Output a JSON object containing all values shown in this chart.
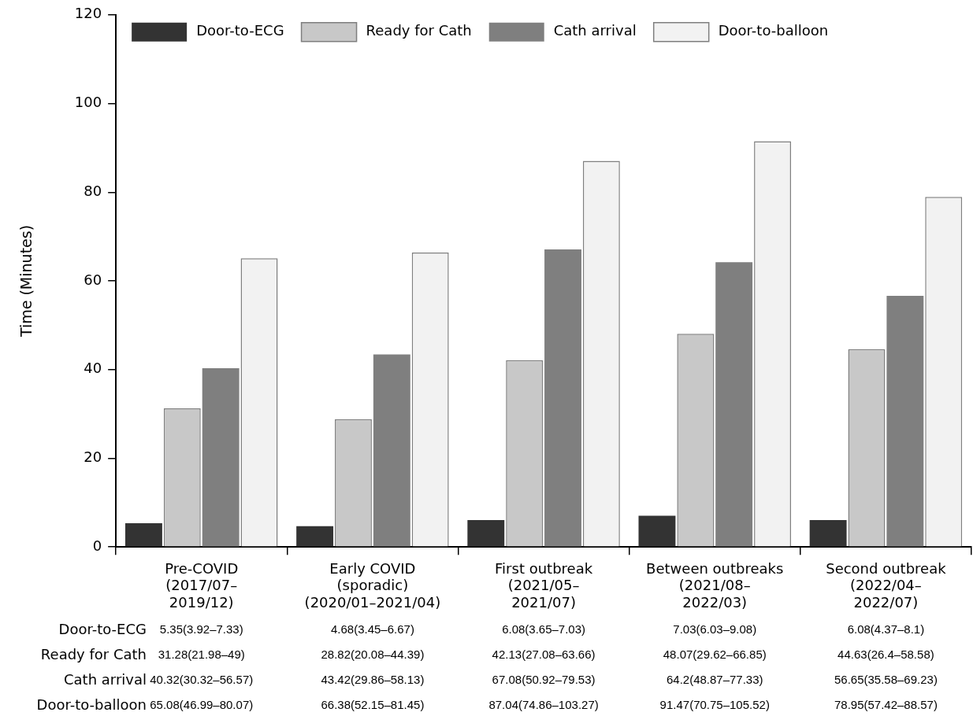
{
  "chart_data": {
    "type": "bar",
    "ylabel": "Time (Minutes)",
    "categories": [
      "Pre-COVID\n(2017/07–\n2019/12)",
      "Early COVID\n(sporadic)\n(2020/01–2021/04)",
      "First outbreak\n(2021/05–\n2021/07)",
      "Between outbreaks\n(2021/08–\n2022/03)",
      "Second outbreak\n(2022/04–\n2022/07)"
    ],
    "series": [
      {
        "name": "Door-to-ECG",
        "color": "#333333",
        "values": [
          5.35,
          4.68,
          6.08,
          7.03,
          6.08
        ],
        "value_labels": [
          "5.35(3.92–7.33)",
          "4.68(3.45–6.67)",
          "6.08(3.65–7.03)",
          "7.03(6.03–9.08)",
          "6.08(4.37–8.1)"
        ]
      },
      {
        "name": "Ready for Cath",
        "color": "#c8c8c8",
        "values": [
          31.28,
          28.82,
          42.13,
          48.07,
          44.63
        ],
        "value_labels": [
          "31.28(21.98–49)",
          "28.82(20.08–44.39)",
          "42.13(27.08–63.66)",
          "48.07(29.62–66.85)",
          "44.63(26.4–58.58)"
        ]
      },
      {
        "name": "Cath arrival",
        "color": "#7f7f7f",
        "values": [
          40.32,
          43.42,
          67.08,
          64.2,
          56.65
        ],
        "value_labels": [
          "40.32(30.32–56.57)",
          "43.42(29.86–58.13)",
          "67.08(50.92–79.53)",
          "64.2(48.87–77.33)",
          "56.65(35.58–69.23)"
        ]
      },
      {
        "name": "Door-to-balloon",
        "color": "#f2f2f2",
        "values": [
          65.08,
          66.38,
          87.04,
          91.47,
          78.95
        ],
        "value_labels": [
          "65.08(46.99–80.07)",
          "66.38(52.15–81.45)",
          "87.04(74.86–103.27)",
          "91.47(70.75–105.52)",
          "78.95(57.42–88.57)"
        ]
      }
    ],
    "ylim": [
      0,
      120
    ],
    "yticks": [
      0,
      20,
      40,
      60,
      80,
      100,
      120
    ],
    "grid": false,
    "legend": "top"
  }
}
